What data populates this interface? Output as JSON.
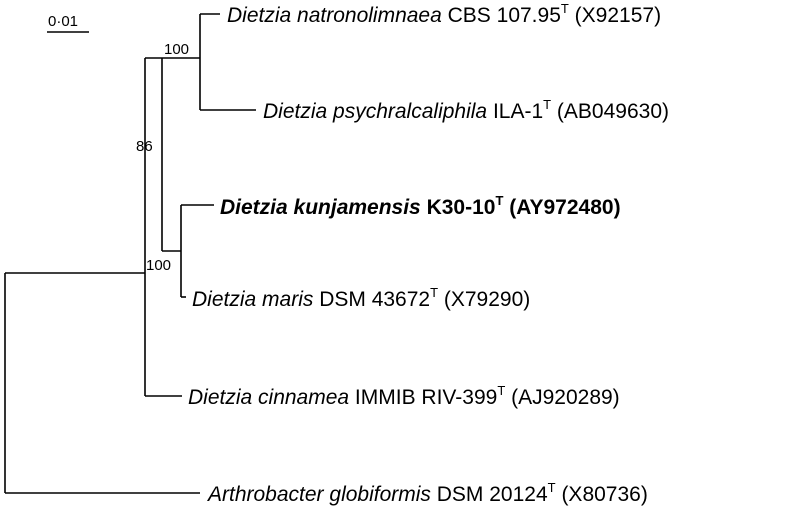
{
  "scale_bar": {
    "label": "0·01"
  },
  "bootstrap": {
    "natronolimnaea_psychralcaliphila": "100",
    "dietzia_ingroup": "86",
    "kunjamensis_maris": "100"
  },
  "taxa": [
    {
      "id": "natronolimnaea",
      "genus_species": "Dietzia natronolimnaea",
      "strain": " CBS 107.95",
      "type_mark": "T",
      "accession": " (X92157)",
      "bold": false
    },
    {
      "id": "psychralcaliphila",
      "genus_species": "Dietzia psychralcaliphila",
      "strain": " ILA-1",
      "type_mark": "T",
      "accession": " (AB049630)",
      "bold": false
    },
    {
      "id": "kunjamensis",
      "genus_species": "Dietzia kunjamensis",
      "strain": " K30-10",
      "type_mark": "T",
      "accession": " (AY972480)",
      "bold": true
    },
    {
      "id": "maris",
      "genus_species": "Dietzia maris",
      "strain": " DSM 43672",
      "type_mark": "T",
      "accession": " (X79290)",
      "bold": false
    },
    {
      "id": "cinnamea",
      "genus_species": "Dietzia cinnamea",
      "strain": " IMMIB RIV-399",
      "type_mark": "T",
      "accession": " (AJ920289)",
      "bold": false
    },
    {
      "id": "globiformis",
      "genus_species": "Arthrobacter globiformis",
      "strain": " DSM 20124",
      "type_mark": "T",
      "accession": " (X80736)",
      "bold": false
    }
  ]
}
